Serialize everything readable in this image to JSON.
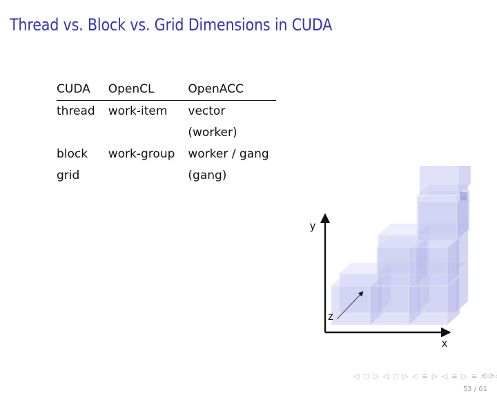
{
  "slide": {
    "title": "Thread vs. Block vs. Grid Dimensions in CUDA",
    "page_number": "53 / 61",
    "nav_symbols": "◁ ◻ ▷ ◁ ◻ ▷ ◁ ≡ ▷ ◁ ≡ ▷ ≡ ⟲⟳◇"
  },
  "table": {
    "headers": [
      "CUDA",
      "OpenCL",
      "OpenACC"
    ],
    "rows": [
      {
        "cuda": "thread",
        "opencl": "work-item",
        "openacc": [
          "vector",
          "(worker)"
        ]
      },
      {
        "cuda": "block",
        "opencl": "work-group",
        "openacc": [
          "worker / gang"
        ]
      },
      {
        "cuda": "grid",
        "opencl": "",
        "openacc": [
          "(gang)"
        ]
      }
    ]
  },
  "figure": {
    "axis_x": "x",
    "axis_y": "y",
    "axis_z": "z"
  }
}
